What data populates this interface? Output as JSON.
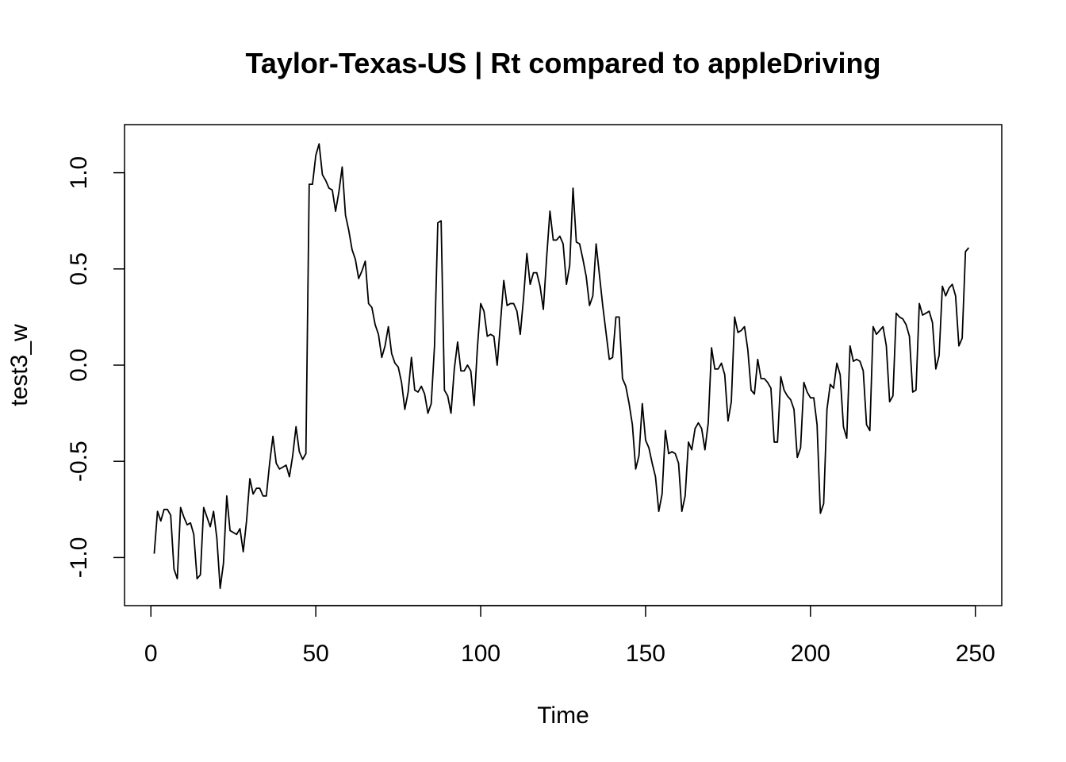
{
  "chart_data": {
    "type": "line",
    "title": "Taylor-Texas-US | Rt compared to appleDriving",
    "xlabel": "Time",
    "ylabel": "test3_w",
    "xlim": [
      -8,
      258
    ],
    "ylim": [
      -1.25,
      1.25
    ],
    "x_ticks": [
      0,
      50,
      100,
      150,
      200,
      250
    ],
    "x_tick_labels": [
      "0",
      "50",
      "100",
      "150",
      "200",
      "250"
    ],
    "y_ticks": [
      -1.0,
      -0.5,
      0.0,
      0.5,
      1.0
    ],
    "y_tick_labels": [
      "-1.0",
      "-0.5",
      "0.0",
      "0.5",
      "1.0"
    ],
    "grid": false,
    "series": [
      {
        "x_start": 1,
        "values": [
          -0.98,
          -0.76,
          -0.81,
          -0.75,
          -0.75,
          -0.78,
          -1.06,
          -1.11,
          -0.74,
          -0.79,
          -0.83,
          -0.82,
          -0.88,
          -1.11,
          -1.09,
          -0.74,
          -0.79,
          -0.84,
          -0.76,
          -0.9,
          -1.16,
          -1.03,
          -0.68,
          -0.86,
          -0.87,
          -0.88,
          -0.85,
          -0.97,
          -0.81,
          -0.59,
          -0.67,
          -0.64,
          -0.64,
          -0.68,
          -0.68,
          -0.51,
          -0.37,
          -0.51,
          -0.54,
          -0.53,
          -0.52,
          -0.58,
          -0.47,
          -0.32,
          -0.45,
          -0.49,
          -0.46,
          0.94,
          0.94,
          1.09,
          1.15,
          0.99,
          0.96,
          0.92,
          0.91,
          0.8,
          0.9,
          1.03,
          0.78,
          0.7,
          0.6,
          0.55,
          0.45,
          0.49,
          0.54,
          0.32,
          0.3,
          0.21,
          0.16,
          0.04,
          0.1,
          0.2,
          0.06,
          0.01,
          -0.01,
          -0.09,
          -0.23,
          -0.14,
          0.04,
          -0.13,
          -0.14,
          -0.11,
          -0.15,
          -0.25,
          -0.2,
          0.1,
          0.74,
          0.75,
          -0.13,
          -0.16,
          -0.25,
          -0.02,
          0.12,
          -0.03,
          -0.03,
          0.0,
          -0.03,
          -0.21,
          0.09,
          0.32,
          0.28,
          0.15,
          0.16,
          0.15,
          0.0,
          0.22,
          0.44,
          0.31,
          0.32,
          0.32,
          0.28,
          0.16,
          0.35,
          0.58,
          0.42,
          0.48,
          0.48,
          0.41,
          0.29,
          0.56,
          0.8,
          0.65,
          0.65,
          0.67,
          0.63,
          0.42,
          0.52,
          0.92,
          0.64,
          0.63,
          0.55,
          0.46,
          0.31,
          0.36,
          0.63,
          0.47,
          0.31,
          0.17,
          0.03,
          0.04,
          0.25,
          0.25,
          -0.07,
          -0.11,
          -0.2,
          -0.31,
          -0.54,
          -0.47,
          -0.2,
          -0.39,
          -0.43,
          -0.51,
          -0.58,
          -0.76,
          -0.67,
          -0.34,
          -0.46,
          -0.45,
          -0.46,
          -0.51,
          -0.76,
          -0.68,
          -0.4,
          -0.44,
          -0.33,
          -0.3,
          -0.33,
          -0.44,
          -0.3,
          0.09,
          -0.02,
          -0.02,
          0.01,
          -0.05,
          -0.29,
          -0.19,
          0.25,
          0.17,
          0.18,
          0.2,
          0.08,
          -0.13,
          -0.15,
          0.03,
          -0.07,
          -0.07,
          -0.09,
          -0.12,
          -0.4,
          -0.4,
          -0.06,
          -0.13,
          -0.16,
          -0.18,
          -0.23,
          -0.48,
          -0.43,
          -0.09,
          -0.14,
          -0.17,
          -0.17,
          -0.31,
          -0.77,
          -0.72,
          -0.23,
          -0.1,
          -0.12,
          0.01,
          -0.05,
          -0.32,
          -0.38,
          0.1,
          0.02,
          0.03,
          0.02,
          -0.03,
          -0.31,
          -0.34,
          0.2,
          0.16,
          0.18,
          0.2,
          0.1,
          -0.19,
          -0.16,
          0.27,
          0.25,
          0.24,
          0.21,
          0.15,
          -0.14,
          -0.13,
          0.32,
          0.26,
          0.27,
          0.28,
          0.22,
          -0.02,
          0.05,
          0.41,
          0.36,
          0.4,
          0.42,
          0.36,
          0.1,
          0.14,
          0.59,
          0.61
        ]
      }
    ]
  }
}
